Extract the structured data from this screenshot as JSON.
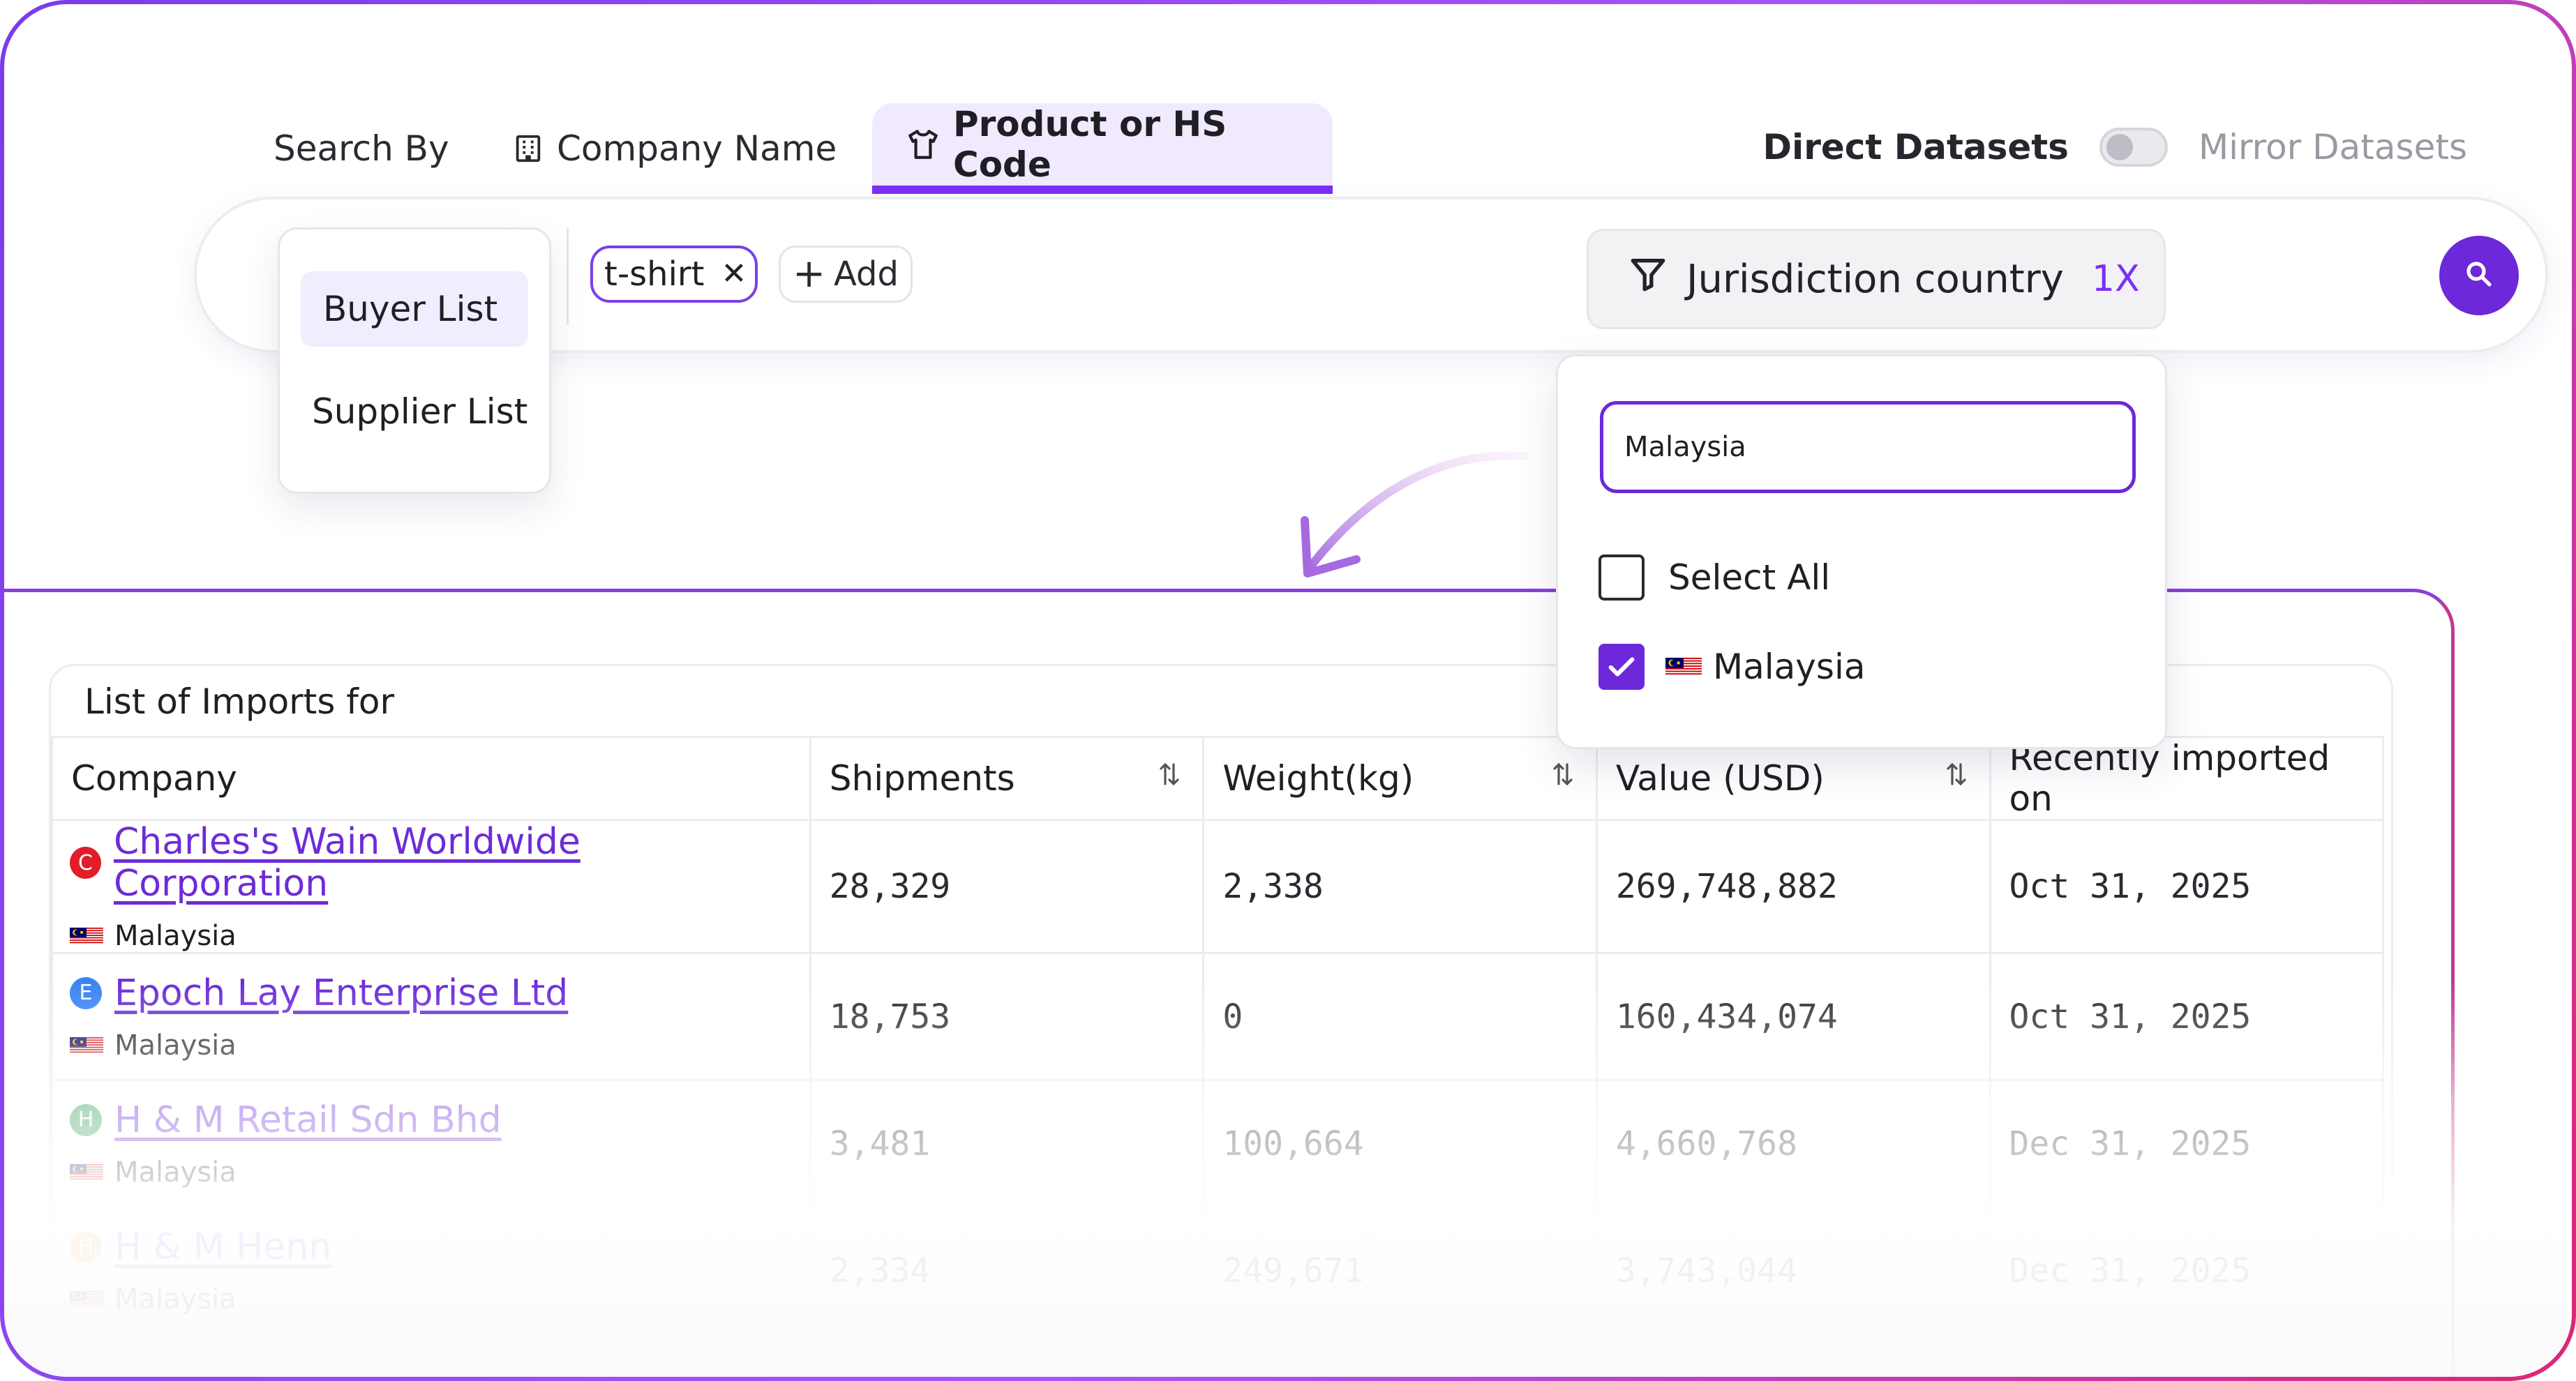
{
  "search_by": {
    "label": "Search By",
    "tabs": [
      {
        "label": "Company Name",
        "icon": "building-icon",
        "active": false
      },
      {
        "label": "Product or HS Code",
        "icon": "tshirt-icon",
        "active": true
      }
    ]
  },
  "datasets": {
    "direct_label": "Direct Datasets",
    "mirror_label": "Mirror Datasets",
    "toggle_on": false
  },
  "list_type": {
    "options": [
      "Buyer List",
      "Supplier List"
    ],
    "selected": "Buyer List"
  },
  "search": {
    "chips": [
      "t-shirt"
    ],
    "add_label": "Add",
    "filter_label": "Jurisdiction country",
    "filter_count": "1X",
    "search_icon": "search-icon"
  },
  "country_dropdown": {
    "input_value": "Malaysia",
    "select_all_label": "Select All",
    "options": [
      {
        "label": "Malaysia",
        "checked": true
      }
    ]
  },
  "table": {
    "title": "List of Imports for",
    "columns": [
      "Company",
      "Shipments",
      "Weight(kg)",
      "Value (USD)",
      "Recently imported on"
    ],
    "rows": [
      {
        "initial": "C",
        "badge_color": "#e11d2a",
        "company": "Charles's Wain Worldwide Corporation",
        "country": "Malaysia",
        "shipments": "28,329",
        "weight": "2,338",
        "value": "269,748,882",
        "date": "Oct 31, 2025"
      },
      {
        "initial": "E",
        "badge_color": "#3b82f6",
        "company": "Epoch Lay Enterprise Ltd",
        "country": "Malaysia",
        "shipments": "18,753",
        "weight": "0",
        "value": "160,434,074",
        "date": "Oct 31, 2025"
      },
      {
        "initial": "H",
        "badge_color": "#2e9a4f",
        "company": "H & M Retail Sdn Bhd",
        "country": "Malaysia",
        "shipments": "3,481",
        "weight": "100,664",
        "value": "4,660,768",
        "date": "Dec 31, 2025"
      },
      {
        "initial": "H",
        "badge_color": "#f08a24",
        "company": "H & M Henn",
        "country": "Malaysia",
        "shipments": "2,334",
        "weight": "249,671",
        "value": "3,743,044",
        "date": "Dec 31, 2025"
      }
    ]
  },
  "colors": {
    "accent": "#6d28d9",
    "link": "#6d2bd9",
    "tab_bg": "#f1eafe"
  }
}
